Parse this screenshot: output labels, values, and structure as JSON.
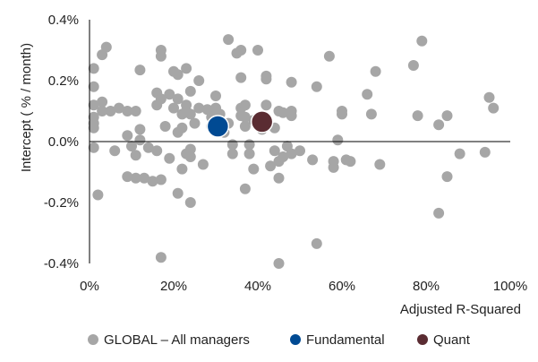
{
  "chart_data": {
    "type": "scatter",
    "title": "",
    "xlabel": "Adjusted R-Squared",
    "ylabel": "Intercept ( % / month)",
    "xlim": [
      0,
      100
    ],
    "ylim": [
      -0.4,
      0.4
    ],
    "x_ticks": [
      0,
      20,
      40,
      60,
      80,
      100
    ],
    "x_tick_labels": [
      "0%",
      "20%",
      "40%",
      "60%",
      "80%",
      "100%"
    ],
    "y_ticks": [
      -0.4,
      -0.2,
      0.0,
      0.2,
      0.4
    ],
    "y_tick_labels": [
      "-0.4%",
      "-0.2%",
      "0.0%",
      "0.2%",
      "0.4%"
    ],
    "grid": false,
    "legend_position": "bottom",
    "series": [
      {
        "name": "GLOBAL – All managers",
        "color": "#a6a6a6",
        "marker_size": "small",
        "points": [
          [
            1,
            0.24
          ],
          [
            1,
            0.18
          ],
          [
            1,
            0.12
          ],
          [
            1,
            0.08
          ],
          [
            1,
            0.06
          ],
          [
            1,
            0.045
          ],
          [
            1,
            -0.02
          ],
          [
            2,
            -0.175
          ],
          [
            3,
            0.285
          ],
          [
            4,
            0.31
          ],
          [
            3,
            0.13
          ],
          [
            5,
            0.1
          ],
          [
            3,
            0.1
          ],
          [
            6,
            -0.03
          ],
          [
            7,
            0.11
          ],
          [
            9,
            0.1
          ],
          [
            11,
            0.1
          ],
          [
            9,
            0.02
          ],
          [
            10,
            -0.015
          ],
          [
            11,
            -0.045
          ],
          [
            12,
            0.005
          ],
          [
            11,
            -0.12
          ],
          [
            9,
            -0.115
          ],
          [
            12,
            0.04
          ],
          [
            12,
            0.235
          ],
          [
            13,
            -0.12
          ],
          [
            14,
            -0.02
          ],
          [
            15,
            -0.13
          ],
          [
            16,
            0.12
          ],
          [
            16,
            0.16
          ],
          [
            17,
            0.28
          ],
          [
            17,
            0.3
          ],
          [
            17,
            0.14
          ],
          [
            16,
            -0.03
          ],
          [
            17,
            -0.125
          ],
          [
            17,
            -0.38
          ],
          [
            18,
            0.05
          ],
          [
            19,
            0.155
          ],
          [
            19,
            -0.055
          ],
          [
            20,
            0.23
          ],
          [
            20,
            0.11
          ],
          [
            21,
            0.22
          ],
          [
            21,
            0.14
          ],
          [
            21,
            0.03
          ],
          [
            21,
            -0.17
          ],
          [
            22,
            -0.09
          ],
          [
            22,
            0.09
          ],
          [
            22,
            0.045
          ],
          [
            23,
            0.24
          ],
          [
            23,
            0.12
          ],
          [
            23,
            0.1
          ],
          [
            23,
            -0.04
          ],
          [
            24,
            0.165
          ],
          [
            24,
            0.09
          ],
          [
            24,
            -0.05
          ],
          [
            24,
            -0.025
          ],
          [
            24,
            -0.2
          ],
          [
            25,
            0.06
          ],
          [
            26,
            0.11
          ],
          [
            26,
            0.2
          ],
          [
            27,
            -0.075
          ],
          [
            28,
            0.105
          ],
          [
            29,
            0.08
          ],
          [
            29,
            0.05
          ],
          [
            30,
            0.15
          ],
          [
            30,
            0.11
          ],
          [
            31,
            0.09
          ],
          [
            31,
            0.04
          ],
          [
            32,
            0.03
          ],
          [
            33,
            0.335
          ],
          [
            33,
            0.06
          ],
          [
            34,
            -0.01
          ],
          [
            34,
            -0.04
          ],
          [
            35,
            0.29
          ],
          [
            36,
            0.3
          ],
          [
            36,
            0.21
          ],
          [
            36,
            0.11
          ],
          [
            36,
            0.085
          ],
          [
            37,
            0.12
          ],
          [
            37,
            0.08
          ],
          [
            37,
            0.05
          ],
          [
            37,
            -0.155
          ],
          [
            38,
            -0.01
          ],
          [
            38,
            -0.04
          ],
          [
            39,
            0.07
          ],
          [
            39,
            -0.09
          ],
          [
            40,
            0.3
          ],
          [
            41,
            0.04
          ],
          [
            42,
            0.215
          ],
          [
            42,
            0.205
          ],
          [
            42,
            0.12
          ],
          [
            43,
            -0.08
          ],
          [
            44,
            0.045
          ],
          [
            44,
            -0.03
          ],
          [
            45,
            -0.065
          ],
          [
            45,
            -0.12
          ],
          [
            45,
            -0.4
          ],
          [
            45,
            0.1
          ],
          [
            46,
            0.095
          ],
          [
            46,
            -0.05
          ],
          [
            47,
            -0.015
          ],
          [
            48,
            0.195
          ],
          [
            48,
            0.1
          ],
          [
            48,
            0.085
          ],
          [
            48,
            -0.04
          ],
          [
            50,
            -0.03
          ],
          [
            53,
            -0.06
          ],
          [
            54,
            0.18
          ],
          [
            54,
            -0.335
          ],
          [
            57,
            0.28
          ],
          [
            58,
            -0.065
          ],
          [
            58,
            -0.085
          ],
          [
            59,
            0.005
          ],
          [
            60,
            0.1
          ],
          [
            60,
            0.09
          ],
          [
            61,
            -0.06
          ],
          [
            62,
            -0.065
          ],
          [
            66,
            0.155
          ],
          [
            67,
            0.09
          ],
          [
            68,
            0.23
          ],
          [
            69,
            -0.075
          ],
          [
            77,
            0.25
          ],
          [
            78,
            0.085
          ],
          [
            79,
            0.33
          ],
          [
            83,
            0.055
          ],
          [
            83,
            -0.235
          ],
          [
            85,
            0.085
          ],
          [
            85,
            -0.115
          ],
          [
            88,
            -0.04
          ],
          [
            94,
            -0.035
          ],
          [
            95,
            0.145
          ],
          [
            96,
            0.11
          ]
        ]
      },
      {
        "name": "Fundamental",
        "color": "#004a93",
        "marker_size": "large",
        "points": [
          [
            30.5,
            0.05
          ]
        ]
      },
      {
        "name": "Quant",
        "color": "#5a2c32",
        "marker_size": "large",
        "points": [
          [
            41,
            0.065
          ]
        ]
      }
    ]
  }
}
